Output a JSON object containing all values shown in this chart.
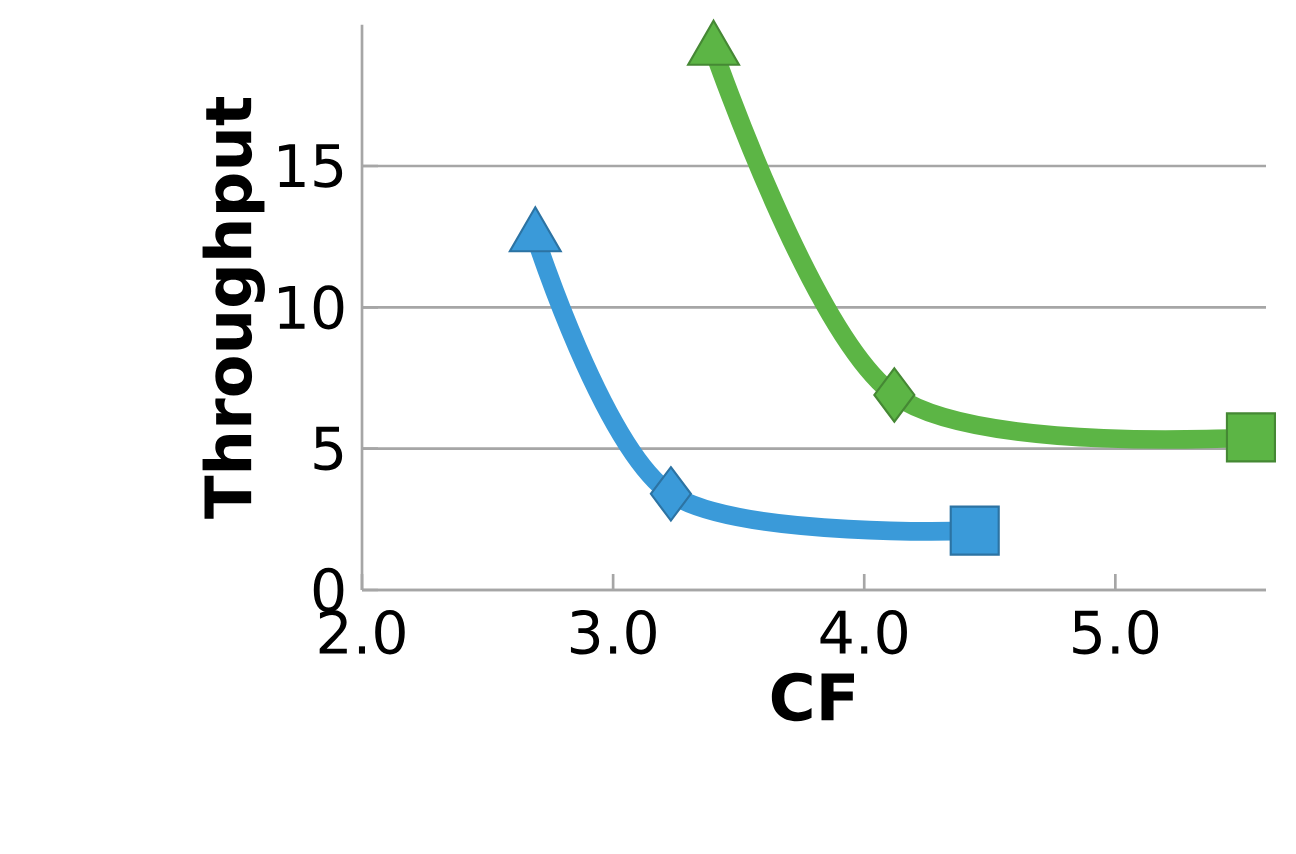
{
  "chart_data": {
    "type": "line",
    "xlabel": "CF",
    "ylabel": "Throughput",
    "xlim": [
      2,
      5.6
    ],
    "ylim": [
      0,
      20
    ],
    "xticks": [
      {
        "value": 2,
        "label": "2.0"
      },
      {
        "value": 3,
        "label": "3.0"
      },
      {
        "value": 4,
        "label": "4.0"
      },
      {
        "value": 5,
        "label": "5.0"
      }
    ],
    "yticks": [
      0,
      5,
      10,
      15
    ],
    "grid": "y",
    "line_style": "solid",
    "series": [
      {
        "color": "#3a9ad9",
        "x": [
          2.69,
          3.23,
          4.44
        ],
        "values": [
          12.5,
          3.4,
          2.1
        ],
        "marker": "none"
      },
      {
        "color": "#5cb545",
        "x": [
          3.4,
          4.12,
          5.54
        ],
        "values": [
          19.1,
          6.9,
          5.4
        ],
        "marker": "none"
      },
      {
        "type": "scatter",
        "marker": "triangle",
        "x": [
          2.69,
          3.4
        ],
        "values": [
          12.5,
          19.1
        ],
        "colors": [
          "#3a9ad9",
          "#5cb545"
        ]
      },
      {
        "type": "scatter",
        "marker": "diamond",
        "x": [
          3.23,
          4.12
        ],
        "values": [
          3.4,
          6.9
        ],
        "colors": [
          "#3a9ad9",
          "#5cb545"
        ]
      },
      {
        "type": "scatter",
        "marker": "square",
        "x": [
          4.44,
          5.54
        ],
        "values": [
          2.1,
          5.4
        ],
        "colors": [
          "#3a9ad9",
          "#5cb545"
        ]
      }
    ]
  }
}
